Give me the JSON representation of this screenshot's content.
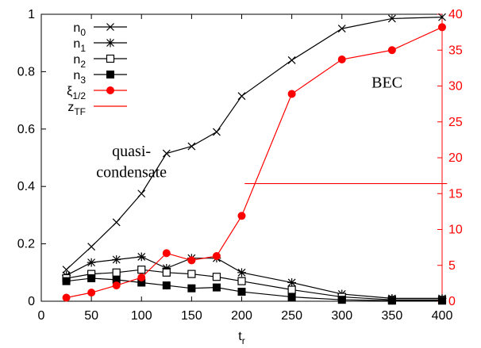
{
  "chart_data": {
    "type": "line",
    "xlabel": "t",
    "xlabel_sub": "r",
    "xlim": [
      0,
      400
    ],
    "ylim_left": [
      0,
      1
    ],
    "ylim_right": [
      0,
      40
    ],
    "x_ticks": [
      0,
      50,
      100,
      150,
      200,
      250,
      300,
      350,
      400
    ],
    "y_ticks_left": [
      0,
      0.2,
      0.4,
      0.6,
      0.8,
      1
    ],
    "y_ticks_right": [
      0,
      5,
      10,
      15,
      20,
      25,
      30,
      35,
      40
    ],
    "y_tick_labels_left": [
      "0",
      "0.2",
      "0.4",
      "0.6",
      "0.8",
      "1"
    ],
    "grid": false,
    "legend_position": "top-left",
    "series": [
      {
        "name": "n",
        "name_sub": "0",
        "axis": "left",
        "color": "#000000",
        "marker": "x",
        "x": [
          25,
          50,
          75,
          100,
          125,
          150,
          175,
          200,
          250,
          300,
          350,
          400
        ],
        "y": [
          0.11,
          0.19,
          0.275,
          0.375,
          0.515,
          0.54,
          0.59,
          0.715,
          0.84,
          0.95,
          0.985,
          0.99
        ]
      },
      {
        "name": "n",
        "name_sub": "1",
        "axis": "left",
        "color": "#000000",
        "marker": "star",
        "x": [
          25,
          50,
          75,
          100,
          125,
          150,
          175,
          200,
          250,
          300,
          350,
          400
        ],
        "y": [
          0.09,
          0.135,
          0.145,
          0.155,
          0.115,
          0.15,
          0.15,
          0.1,
          0.065,
          0.025,
          0.01,
          0.01
        ]
      },
      {
        "name": "n",
        "name_sub": "2",
        "axis": "left",
        "color": "#000000",
        "marker": "open-square",
        "x": [
          25,
          50,
          75,
          100,
          125,
          150,
          175,
          200,
          250,
          300,
          350,
          400
        ],
        "y": [
          0.08,
          0.095,
          0.1,
          0.11,
          0.1,
          0.095,
          0.085,
          0.07,
          0.04,
          0.015,
          0.005,
          0.005
        ]
      },
      {
        "name": "n",
        "name_sub": "3",
        "axis": "left",
        "color": "#000000",
        "marker": "filled-square",
        "x": [
          25,
          50,
          75,
          100,
          125,
          150,
          175,
          200,
          250,
          300,
          350,
          400
        ],
        "y": [
          0.07,
          0.08,
          0.075,
          0.065,
          0.055,
          0.045,
          0.048,
          0.033,
          0.015,
          0.005,
          0.002,
          0.002
        ]
      },
      {
        "name": "ξ",
        "name_sub": "1/2",
        "axis": "right",
        "color": "#ff0000",
        "marker": "filled-circle",
        "x": [
          25,
          50,
          75,
          100,
          125,
          150,
          175,
          200,
          250,
          300,
          350,
          400
        ],
        "y": [
          0.5,
          1.2,
          2.2,
          3.3,
          6.7,
          5.7,
          6.3,
          11.9,
          28.9,
          33.7,
          35.0,
          38.2
        ]
      },
      {
        "name": "z",
        "name_sub": "TF",
        "axis": "right",
        "color": "#ff0000",
        "marker": "none",
        "x": [
          203,
          405
        ],
        "y": [
          16.4,
          16.4
        ]
      }
    ],
    "annotations": [
      {
        "text": "BEC",
        "x": 345,
        "y": 0.745
      },
      {
        "text": "quasi-",
        "x": 90,
        "y": 0.505
      },
      {
        "text": "condensate",
        "x": 90,
        "y": 0.432
      }
    ]
  }
}
